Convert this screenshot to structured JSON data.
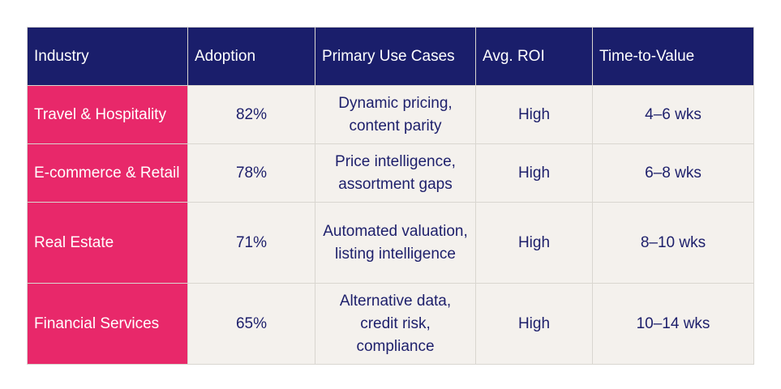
{
  "colors": {
    "header_bg": "#1a1e6b",
    "header_text": "#ffffff",
    "industry_bg": "#e8286a",
    "cell_bg": "#f4f1ed",
    "cell_text": "#1d1f6b",
    "border": "#d9d6d0"
  },
  "table": {
    "headers": [
      "Industry",
      "Adoption",
      "Primary Use Cases",
      "Avg. ROI",
      "Time-to-Value"
    ],
    "rows": [
      {
        "industry": "Travel & Hospitality",
        "adoption": "82%",
        "use_cases": "Dynamic pricing, content parity",
        "roi": "High",
        "time_to_value": "4–6 wks"
      },
      {
        "industry": "E-commerce & Retail",
        "adoption": "78%",
        "use_cases": "Price intelligence, assortment gaps",
        "roi": "High",
        "time_to_value": "6–8 wks"
      },
      {
        "industry": "Real Estate",
        "adoption": "71%",
        "use_cases": "Automated valuation, listing intelligence",
        "roi": "High",
        "time_to_value": "8–10 wks"
      },
      {
        "industry": "Financial Services",
        "adoption": "65%",
        "use_cases": "Alternative data, credit risk, compliance",
        "roi": "High",
        "time_to_value": "10–14 wks"
      }
    ]
  }
}
